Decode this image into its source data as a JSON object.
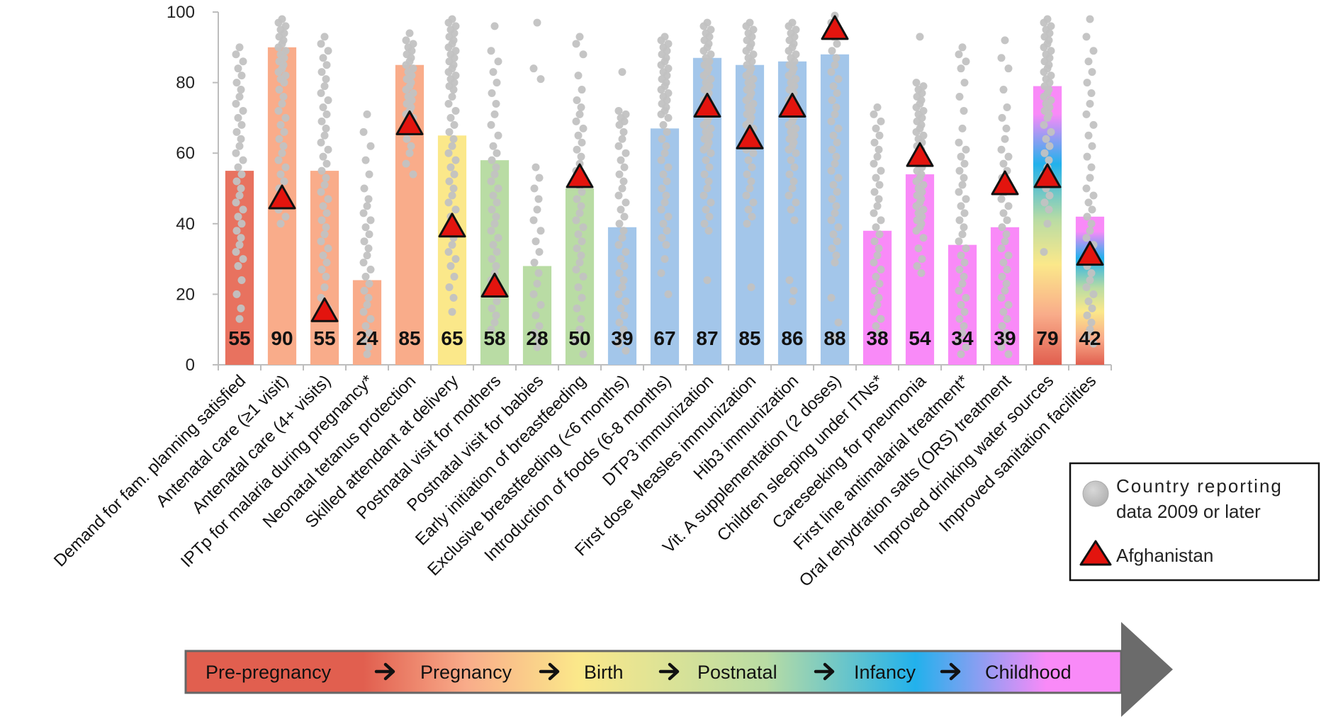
{
  "chart_data": {
    "type": "bar",
    "ylim": [
      0,
      100
    ],
    "yticks": [
      0,
      20,
      40,
      60,
      80,
      100
    ],
    "categories": [
      "Demand for fam. planning satisfied",
      "Antenatal care (≥1 visit)",
      "Antenatal care (4+ visits)",
      "IPTp for malaria during pregnancy*",
      "Neonatal tetanus protection",
      "Skilled attendant at delivery",
      "Postnatal visit for mothers",
      "Postnatal visit for babies",
      "Early initiation of breastfeeding",
      "Exclusive breastfeeding (<6 months)",
      "Introduction of foods (6-8 months)",
      "DTP3 immunization",
      "First dose Measles immunization",
      "Hib3 immunization",
      "Vit. A supplementation (2 doses)",
      "Children sleeping under ITNs*",
      "Careseeking for pneumonia",
      "First line antimalarial treatment*",
      "Oral rehydration salts (ORS) treatment",
      "Improved drinking water sources",
      "Improved sanitation facilities"
    ],
    "series": [
      {
        "values": [
          55,
          90,
          55,
          24,
          85,
          65,
          58,
          28,
          50,
          39,
          67,
          87,
          85,
          86,
          88,
          38,
          54,
          34,
          39,
          79,
          42
        ],
        "value_labels": [
          "55",
          "90",
          "55",
          "24",
          "85",
          "65",
          "58",
          "28",
          "50",
          "39",
          "67",
          "87",
          "85",
          "86",
          "88",
          "38",
          "54",
          "34",
          "39",
          "79",
          "42"
        ]
      },
      {
        "name": "Country reporting data 2009 or later",
        "type": "scatter",
        "points": [
          [
            90,
            88,
            86,
            84,
            82,
            80,
            78,
            76,
            74,
            72,
            70,
            68,
            66,
            64,
            62,
            60,
            58,
            56,
            54,
            52,
            50,
            48,
            46,
            44,
            42,
            40,
            38,
            36,
            34,
            32,
            30,
            28,
            24,
            20,
            16,
            13
          ],
          [
            98,
            97,
            96,
            95,
            94,
            93,
            92,
            91,
            90,
            89,
            88,
            87,
            86,
            85,
            84,
            83,
            82,
            81,
            80,
            78,
            76,
            74,
            72,
            70,
            68,
            66,
            64,
            62,
            60,
            58,
            56,
            54,
            52,
            50,
            48,
            46,
            44,
            42,
            40
          ],
          [
            93,
            91,
            89,
            87,
            85,
            83,
            81,
            79,
            77,
            75,
            73,
            71,
            69,
            67,
            65,
            63,
            61,
            59,
            57,
            55,
            53,
            51,
            49,
            47,
            45,
            43,
            41,
            39,
            37,
            35,
            33,
            31,
            29,
            27,
            25,
            22,
            19,
            16
          ],
          [
            71,
            66,
            62,
            58,
            54,
            50,
            47,
            45,
            43,
            41,
            39,
            37,
            35,
            33,
            31,
            29,
            27,
            25,
            23,
            21,
            19,
            17,
            15,
            13,
            11,
            9,
            7,
            5,
            3
          ],
          [
            94,
            92,
            91,
            90,
            89,
            88,
            87,
            86,
            85,
            84,
            83,
            82,
            81,
            80,
            79,
            78,
            77,
            76,
            75,
            74,
            73,
            72,
            71,
            70,
            68,
            66,
            64,
            62,
            60,
            57,
            54
          ],
          [
            98,
            97,
            96,
            95,
            94,
            93,
            92,
            91,
            90,
            89,
            88,
            87,
            86,
            85,
            84,
            83,
            82,
            81,
            80,
            79,
            78,
            76,
            74,
            72,
            70,
            68,
            66,
            64,
            62,
            60,
            58,
            56,
            54,
            52,
            50,
            48,
            46,
            44,
            42,
            40,
            38,
            36,
            34,
            32,
            30,
            28,
            25,
            22,
            19,
            15
          ],
          [
            96,
            89,
            86,
            83,
            80,
            77,
            74,
            71,
            68,
            65,
            62,
            60,
            58,
            56,
            54,
            52,
            50,
            48,
            46,
            44,
            42,
            40,
            38,
            36,
            34,
            32,
            30,
            28,
            26,
            24,
            22,
            20,
            18,
            16,
            14,
            12,
            10
          ],
          [
            97,
            84,
            81,
            56,
            53,
            50,
            47,
            44,
            41,
            38,
            35,
            32,
            29,
            26,
            23,
            20,
            17,
            14,
            11,
            9,
            7,
            5
          ],
          [
            93,
            91,
            88,
            82,
            78,
            75,
            73,
            71,
            69,
            67,
            65,
            63,
            61,
            59,
            57,
            55,
            53,
            51,
            49,
            47,
            45,
            43,
            41,
            39,
            37,
            35,
            33,
            31,
            29,
            27,
            25,
            22,
            19,
            16,
            13,
            10,
            7,
            3
          ],
          [
            83,
            72,
            71,
            70,
            69,
            68,
            66,
            64,
            62,
            60,
            58,
            56,
            54,
            52,
            50,
            48,
            46,
            44,
            42,
            40,
            38,
            36,
            34,
            32,
            30,
            28,
            26,
            24,
            22,
            20,
            18,
            16,
            14,
            12,
            10,
            8,
            6,
            4
          ],
          [
            93,
            92,
            91,
            90,
            89,
            88,
            87,
            86,
            85,
            84,
            83,
            82,
            81,
            80,
            79,
            78,
            77,
            76,
            75,
            74,
            73,
            72,
            71,
            70,
            68,
            66,
            64,
            62,
            60,
            58,
            56,
            54,
            52,
            50,
            48,
            46,
            44,
            42,
            40,
            38,
            36,
            34,
            30,
            26,
            20
          ],
          [
            97,
            96,
            95,
            94,
            93,
            92,
            91,
            90,
            89,
            88,
            87,
            86,
            85,
            84,
            83,
            82,
            81,
            80,
            79,
            78,
            77,
            76,
            75,
            74,
            73,
            72,
            71,
            70,
            69,
            68,
            67,
            66,
            65,
            64,
            63,
            62,
            61,
            60,
            58,
            56,
            54,
            52,
            50,
            48,
            46,
            44,
            42,
            40,
            38,
            24
          ],
          [
            97,
            96,
            95,
            94,
            93,
            92,
            91,
            90,
            89,
            88,
            87,
            86,
            85,
            84,
            83,
            82,
            81,
            80,
            79,
            78,
            77,
            76,
            75,
            74,
            73,
            72,
            71,
            70,
            69,
            68,
            67,
            66,
            65,
            64,
            63,
            62,
            61,
            60,
            58,
            56,
            54,
            52,
            50,
            48,
            46,
            44,
            42,
            40,
            22
          ],
          [
            97,
            96,
            95,
            94,
            93,
            92,
            91,
            90,
            89,
            88,
            87,
            86,
            85,
            84,
            83,
            82,
            81,
            80,
            79,
            78,
            77,
            76,
            75,
            74,
            73,
            72,
            71,
            70,
            69,
            68,
            67,
            66,
            65,
            64,
            63,
            62,
            61,
            60,
            58,
            56,
            54,
            52,
            50,
            48,
            46,
            44,
            41,
            24,
            21,
            18
          ],
          [
            99,
            97,
            95,
            93,
            91,
            89,
            87,
            85,
            83,
            81,
            79,
            77,
            75,
            73,
            71,
            69,
            67,
            65,
            63,
            61,
            59,
            57,
            55,
            53,
            51,
            49,
            47,
            45,
            43,
            41,
            39,
            37,
            35,
            33,
            31,
            29,
            19,
            12,
            8
          ],
          [
            73,
            71,
            69,
            67,
            65,
            63,
            61,
            59,
            57,
            55,
            53,
            51,
            49,
            47,
            45,
            43,
            41,
            39,
            37,
            35,
            33,
            31,
            29,
            27,
            25,
            23,
            21,
            19,
            17,
            15,
            13,
            11,
            9
          ],
          [
            93,
            80,
            79,
            78,
            77,
            76,
            75,
            74,
            73,
            72,
            71,
            70,
            69,
            68,
            67,
            66,
            65,
            64,
            63,
            62,
            61,
            60,
            59,
            58,
            57,
            56,
            55,
            54,
            53,
            52,
            51,
            50,
            49,
            48,
            47,
            46,
            45,
            44,
            43,
            42,
            41,
            40,
            39,
            38,
            36,
            33,
            30,
            28,
            26
          ],
          [
            90,
            88,
            86,
            84,
            80,
            76,
            72,
            67,
            63,
            61,
            59,
            57,
            55,
            53,
            51,
            49,
            47,
            45,
            43,
            41,
            39,
            37,
            35,
            33,
            31,
            29,
            27,
            25,
            23,
            21,
            19,
            17,
            15,
            13,
            11,
            9,
            7,
            5,
            3
          ],
          [
            92,
            87,
            84,
            78,
            73,
            70,
            67,
            64,
            61,
            59,
            57,
            55,
            53,
            51,
            49,
            47,
            45,
            43,
            41,
            39,
            37,
            35,
            33,
            31,
            29,
            27,
            25,
            23,
            21,
            19,
            17,
            15,
            13,
            11,
            9,
            7,
            5,
            3
          ],
          [
            98,
            97,
            96,
            95,
            94,
            93,
            92,
            91,
            90,
            89,
            88,
            87,
            86,
            85,
            84,
            83,
            82,
            81,
            80,
            79,
            78,
            77,
            76,
            75,
            74,
            73,
            72,
            71,
            70,
            68,
            66,
            64,
            62,
            60,
            58,
            56,
            54,
            52,
            50,
            48,
            46,
            44,
            40,
            32
          ],
          [
            98,
            93,
            89,
            86,
            83,
            80,
            77,
            74,
            71,
            68,
            65,
            62,
            59,
            56,
            53,
            50,
            48,
            46,
            44,
            42,
            40,
            38,
            36,
            34,
            32,
            30,
            28,
            26,
            24,
            22,
            20,
            18,
            16,
            14,
            12,
            10,
            8,
            6
          ]
        ]
      },
      {
        "name": "Afghanistan",
        "type": "scatter",
        "values": [
          null,
          47,
          15,
          null,
          68,
          39,
          22,
          null,
          53,
          null,
          null,
          73,
          64,
          73,
          95,
          null,
          59,
          null,
          51,
          53,
          31
        ]
      }
    ],
    "bar_colors": [
      "#e8725f",
      "#f9ac8a",
      "#f9ac8a",
      "#f9ac8a",
      "#f9ac8a",
      "#fbe88a",
      "#b9dca4",
      "#b9dca4",
      "#b9dca4",
      "#a3c6ea",
      "#a3c6ea",
      "#a3c6ea",
      "#a3c6ea",
      "#a3c6ea",
      "#a3c6ea",
      "#f98af8",
      "#f98af8",
      "#f98af8",
      "#f98af8",
      "gradient",
      "gradient"
    ],
    "point_color": "#c2c2c2",
    "marker_color": "#e3140e",
    "legend": {
      "position": "right",
      "items": [
        {
          "label_line1": "Country reporting",
          "label_line2": "data 2009 or later",
          "marker": "circle"
        },
        {
          "label": "Afghanistan",
          "marker": "triangle"
        }
      ]
    },
    "stages": {
      "items": [
        "Pre-pregnancy",
        "Pregnancy",
        "Birth",
        "Postnatal",
        "Infancy",
        "Childhood"
      ],
      "colors": [
        "#e15f4f",
        "#f9ac8a",
        "#fbe88a",
        "#b9dca4",
        "#22b1ec",
        "#f98af8"
      ],
      "arrow_color": "#6b6b6b"
    },
    "grid": false
  }
}
